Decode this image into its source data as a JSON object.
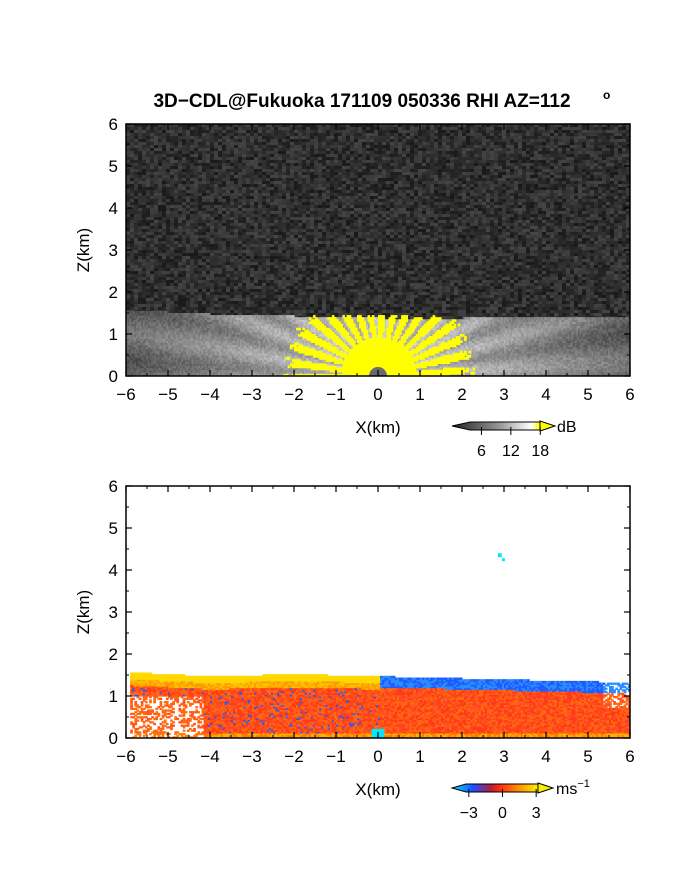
{
  "title": "3D−CDL@Fukuoka 171109 050336 RHI AZ=112",
  "title_superscript": "o",
  "chart_data": [
    {
      "type": "heatmap",
      "panel": "top",
      "quantity": "dB",
      "xlabel": "X(km)",
      "ylabel": "Z(km)",
      "xlim": [
        -6,
        6
      ],
      "ylim": [
        0,
        6
      ],
      "x_ticks": [
        -6,
        -5,
        -4,
        -3,
        -2,
        -1,
        0,
        1,
        2,
        3,
        4,
        5,
        6
      ],
      "y_ticks": [
        0,
        1,
        2,
        3,
        4,
        5,
        6
      ],
      "x_tick_labels": [
        "−6",
        "−5",
        "−4",
        "−3",
        "−2",
        "−1",
        "0",
        "1",
        "2",
        "3",
        "4",
        "5",
        "6"
      ],
      "y_tick_labels": [
        "0",
        "1",
        "2",
        "3",
        "4",
        "5",
        "6"
      ],
      "colorbar": {
        "unit": "dB",
        "tick_labels": [
          "6",
          "12",
          "18"
        ],
        "ticks": [
          6,
          12,
          18
        ],
        "range": [
          0,
          21
        ]
      },
      "colors": {
        "noise": "#2a2a2a",
        "saturated": "#ffff00"
      },
      "features": {
        "boundary_layer_top_km": [
          [
            -6,
            1.55
          ],
          [
            -4,
            1.45
          ],
          [
            -2,
            1.4
          ],
          [
            0,
            1.35
          ],
          [
            2,
            1.35
          ],
          [
            4,
            1.4
          ],
          [
            6,
            1.4
          ]
        ],
        "saturated_region_x_km": [
          -2.4,
          2.4
        ],
        "saturated_region_top_km": 1.45
      }
    },
    {
      "type": "heatmap",
      "panel": "bottom",
      "quantity": "ms⁻¹",
      "xlabel": "X(km)",
      "ylabel": "Z(km)",
      "xlim": [
        -6,
        6
      ],
      "ylim": [
        0,
        6
      ],
      "x_ticks": [
        -6,
        -5,
        -4,
        -3,
        -2,
        -1,
        0,
        1,
        2,
        3,
        4,
        5,
        6
      ],
      "y_ticks": [
        0,
        1,
        2,
        3,
        4,
        5,
        6
      ],
      "x_tick_labels": [
        "−6",
        "−5",
        "−4",
        "−3",
        "−2",
        "−1",
        "0",
        "1",
        "2",
        "3",
        "4",
        "5",
        "6"
      ],
      "y_tick_labels": [
        "0",
        "1",
        "2",
        "3",
        "4",
        "5",
        "6"
      ],
      "colorbar": {
        "unit": "ms",
        "unit_exponent": "−1",
        "tick_labels": [
          "−3",
          "0",
          "3"
        ],
        "ticks": [
          -3,
          0,
          3
        ],
        "range": [
          -4.5,
          4.5
        ]
      },
      "colors": {
        "negative": "#1e5cff",
        "zero": "#ff3a1a",
        "positive": "#ffd800",
        "cyan": "#00e8ff"
      },
      "features": {
        "layer_top_km": [
          [
            -6,
            1.55
          ],
          [
            -4,
            1.45
          ],
          [
            -2,
            1.5
          ],
          [
            0,
            1.45
          ],
          [
            2,
            1.4
          ],
          [
            4,
            1.35
          ],
          [
            6,
            1.3
          ]
        ],
        "isolated_point": [
          2.9,
          4.35
        ]
      }
    }
  ]
}
